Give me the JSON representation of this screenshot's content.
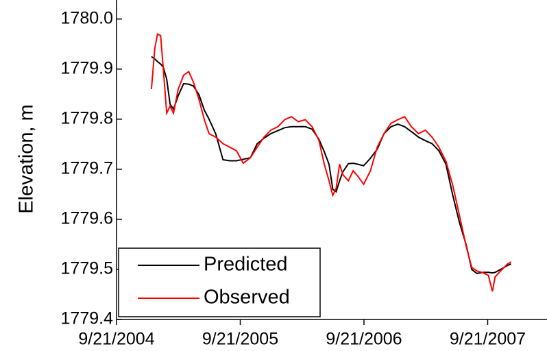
{
  "chart_data": {
    "type": "line",
    "y_label": "Elevation, m",
    "x": [
      "2005-01-02",
      "2005-01-12",
      "2005-01-20",
      "2005-01-29",
      "2005-02-06",
      "2005-02-16",
      "2005-02-26",
      "2005-03-08",
      "2005-03-22",
      "2005-04-07",
      "2005-04-22",
      "2005-05-06",
      "2005-05-22",
      "2005-06-07",
      "2005-06-21",
      "2005-07-11",
      "2005-08-01",
      "2005-08-21",
      "2005-09-10",
      "2005-09-30",
      "2005-10-21",
      "2005-11-10",
      "2005-11-30",
      "2005-12-20",
      "2006-01-10",
      "2006-01-30",
      "2006-02-19",
      "2006-03-11",
      "2006-04-01",
      "2006-04-21",
      "2006-05-11",
      "2006-05-27",
      "2006-06-10",
      "2006-06-21",
      "2006-07-01",
      "2006-07-11",
      "2006-07-21",
      "2006-08-06",
      "2006-08-20",
      "2006-09-03",
      "2006-09-20",
      "2006-10-10",
      "2006-10-30",
      "2006-11-19",
      "2006-12-10",
      "2006-12-30",
      "2007-01-19",
      "2007-02-08",
      "2007-03-01",
      "2007-03-21",
      "2007-04-10",
      "2007-04-30",
      "2007-05-21",
      "2007-06-10",
      "2007-06-30",
      "2007-07-20",
      "2007-08-05",
      "2007-08-20",
      "2007-09-09",
      "2007-09-23",
      "2007-10-05",
      "2007-10-13",
      "2007-10-29",
      "2007-11-19",
      "2007-11-29"
    ],
    "series": [
      {
        "name": "Predicted",
        "color": "#000000",
        "values": [
          1779.925,
          1779.92,
          1779.915,
          1779.91,
          1779.904,
          1779.88,
          1779.83,
          1779.82,
          1779.847,
          1779.871,
          1779.87,
          1779.866,
          1779.849,
          1779.818,
          1779.8,
          1779.77,
          1779.719,
          1779.717,
          1779.717,
          1779.72,
          1779.723,
          1779.751,
          1779.762,
          1779.771,
          1779.777,
          1779.783,
          1779.785,
          1779.785,
          1779.785,
          1779.78,
          1779.76,
          1779.735,
          1779.71,
          1779.66,
          1779.655,
          1779.677,
          1779.695,
          1779.711,
          1779.712,
          1779.71,
          1779.707,
          1779.722,
          1779.74,
          1779.771,
          1779.785,
          1779.79,
          1779.785,
          1779.775,
          1779.764,
          1779.757,
          1779.751,
          1779.737,
          1779.71,
          1779.648,
          1779.593,
          1779.548,
          1779.5,
          1779.492,
          1779.494,
          1779.494,
          1779.493,
          1779.494,
          1779.5,
          1779.508,
          1779.511
        ]
      },
      {
        "name": "Observed",
        "color": "#ff0000",
        "values": [
          1779.86,
          1779.942,
          1779.97,
          1779.967,
          1779.901,
          1779.812,
          1779.826,
          1779.812,
          1779.86,
          1779.888,
          1779.895,
          1779.874,
          1779.84,
          1779.799,
          1779.771,
          1779.764,
          1779.751,
          1779.744,
          1779.737,
          1779.712,
          1779.723,
          1779.744,
          1779.764,
          1779.778,
          1779.785,
          1779.799,
          1779.805,
          1779.795,
          1779.799,
          1779.785,
          1779.758,
          1779.71,
          1779.677,
          1779.648,
          1779.662,
          1779.71,
          1779.689,
          1779.677,
          1779.697,
          1779.686,
          1779.67,
          1779.697,
          1779.744,
          1779.771,
          1779.792,
          1779.799,
          1779.805,
          1779.785,
          1779.771,
          1779.778,
          1779.764,
          1779.744,
          1779.716,
          1779.668,
          1779.607,
          1779.545,
          1779.504,
          1779.497,
          1779.493,
          1779.488,
          1779.456,
          1779.485,
          1779.497,
          1779.511,
          1779.515
        ]
      }
    ],
    "xlim": [
      "2004-09-21",
      "2008-03-14"
    ],
    "xticks": [
      {
        "value": "2004-09-21",
        "label": "9/21/2004"
      },
      {
        "value": "2005-09-21",
        "label": "9/21/2005"
      },
      {
        "value": "2006-09-21",
        "label": "9/21/2006"
      },
      {
        "value": "2007-09-21",
        "label": "9/21/2007"
      }
    ],
    "ylim": [
      1779.4,
      1780.038
    ],
    "yticks": [
      {
        "value": 1779.4,
        "label": "1779.4"
      },
      {
        "value": 1779.5,
        "label": "1779.5"
      },
      {
        "value": 1779.6,
        "label": "1779.6"
      },
      {
        "value": 1779.7,
        "label": "1779.7"
      },
      {
        "value": 1779.8,
        "label": "1779.8"
      },
      {
        "value": 1779.9,
        "label": "1779.9"
      },
      {
        "value": 1780.0,
        "label": "1780.0"
      }
    ],
    "legend": "lower left"
  }
}
